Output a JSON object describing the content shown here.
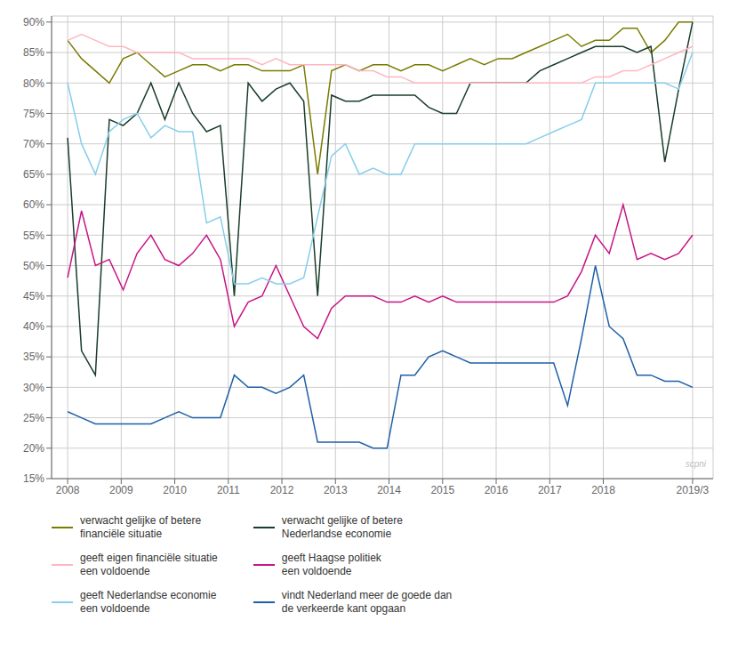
{
  "chart_data": {
    "type": "line",
    "x": [
      2008,
      2008.259267,
      2008.518533,
      2008.7778,
      2009.037067,
      2009.296333,
      2009.5556,
      2009.814867,
      2010.074133,
      2010.3334,
      2010.592667,
      2010.851933,
      2011.1112,
      2011.370467,
      2011.629733,
      2011.889,
      2012.148267,
      2012.407533,
      2012.6668,
      2012.926067,
      2013.185333,
      2013.4446,
      2013.703867,
      2013.963133,
      2014.2224,
      2014.481667,
      2014.740933,
      2015.0002,
      2015.259467,
      2015.518733,
      2015.778,
      2016.037267,
      2016.296533,
      2016.5558,
      2016.815067,
      2017.074333,
      2017.3336,
      2017.592867,
      2017.852133,
      2018.1114,
      2018.370667,
      2018.629933,
      2018.8892,
      2019.148467,
      2019.407733,
      2019.667
    ],
    "series": [
      {
        "name": "verwacht gelijke of betere\nfinanciële situatie",
        "color": "#7b7b00",
        "values": [
          87,
          84,
          82,
          80,
          84,
          85,
          83,
          81,
          82,
          83,
          83,
          82,
          83,
          83,
          82,
          82,
          82,
          83,
          65,
          82,
          83,
          82,
          83,
          83,
          82,
          83,
          83,
          82,
          83,
          84,
          83,
          84,
          84,
          85,
          86,
          87,
          88,
          86,
          87,
          87,
          89,
          89,
          85,
          87,
          90,
          90
        ]
      },
      {
        "name": "verwacht gelijke of betere\nNederlandse economie",
        "color": "#1a3d2b",
        "values": [
          71,
          36,
          32,
          74,
          73,
          75,
          80,
          74,
          80,
          75,
          72,
          73,
          45,
          80,
          77,
          79,
          80,
          77,
          45,
          78,
          77,
          77,
          78,
          78,
          78,
          78,
          76,
          75,
          75,
          80,
          80,
          80,
          80,
          80,
          82,
          83,
          84,
          85,
          86,
          86,
          86,
          85,
          86,
          67,
          79,
          90
        ]
      },
      {
        "name": "geeft eigen financiële situatie\neen voldoende",
        "color": "#ffb6c1",
        "values": [
          87,
          88,
          87,
          86,
          86,
          85,
          85,
          85,
          85,
          84,
          84,
          84,
          84,
          84,
          83,
          84,
          83,
          83,
          83,
          83,
          83,
          82,
          82,
          81,
          81,
          80,
          80,
          80,
          80,
          80,
          80,
          80,
          80,
          80,
          80,
          80,
          80,
          80,
          81,
          81,
          82,
          82,
          83,
          84,
          85,
          86
        ]
      },
      {
        "name": "geeft Haagse politiek\neen voldoende",
        "color": "#c71585",
        "values": [
          48,
          59,
          50,
          51,
          46,
          52,
          55,
          51,
          50,
          52,
          55,
          51,
          40,
          44,
          45,
          50,
          45,
          40,
          38,
          43,
          45,
          45,
          45,
          44,
          44,
          45,
          44,
          45,
          44,
          44,
          44,
          44,
          44,
          44,
          44,
          44,
          45,
          49,
          55,
          52,
          60,
          51,
          52,
          51,
          52,
          55
        ]
      },
      {
        "name": "geeft Nederlandse economie\neen voldoende",
        "color": "#87ceeb",
        "values": [
          80,
          70,
          65,
          72,
          74,
          75,
          71,
          73,
          72,
          72,
          57,
          58,
          47,
          47,
          48,
          47,
          47,
          48,
          58,
          68,
          70,
          65,
          66,
          65,
          65,
          70,
          70,
          70,
          70,
          70,
          70,
          70,
          70,
          70,
          71,
          72,
          73,
          74,
          80,
          80,
          80,
          80,
          80,
          80,
          79,
          85
        ]
      },
      {
        "name": "vindt Nederland meer de goede dan\nde verkeerde kant opgaan",
        "color": "#1e5fa8",
        "values": [
          26,
          25,
          24,
          24,
          24,
          24,
          24,
          25,
          26,
          25,
          25,
          25,
          32,
          30,
          30,
          29,
          30,
          32,
          21,
          21,
          21,
          21,
          20,
          20,
          32,
          32,
          35,
          36,
          35,
          34,
          34,
          34,
          34,
          34,
          34,
          34,
          27,
          38,
          50,
          40,
          38,
          32,
          32,
          31,
          31,
          30
        ]
      }
    ],
    "xlim": [
      2007.7,
      2020.05
    ],
    "xticks": [
      2008,
      2009,
      2010,
      2011,
      2012,
      2013,
      2014,
      2015,
      2016,
      2017,
      2018,
      {
        "value": 2019.667,
        "label": "2019/3"
      }
    ],
    "ylim": [
      15,
      91
    ],
    "yticks": [
      {
        "value": 15,
        "label": "15%"
      },
      {
        "value": 20,
        "label": "20%"
      },
      {
        "value": 25,
        "label": "25%"
      },
      {
        "value": 30,
        "label": "30%"
      },
      {
        "value": 35,
        "label": "35%"
      },
      {
        "value": 40,
        "label": "40%"
      },
      {
        "value": 45,
        "label": "45%"
      },
      {
        "value": 50,
        "label": "50%"
      },
      {
        "value": 55,
        "label": "55%"
      },
      {
        "value": 60,
        "label": "60%"
      },
      {
        "value": 65,
        "label": "65%"
      },
      {
        "value": 70,
        "label": "70%"
      },
      {
        "value": 75,
        "label": "75%"
      },
      {
        "value": 80,
        "label": "80%"
      },
      {
        "value": 85,
        "label": "85%"
      },
      {
        "value": 90,
        "label": "90%"
      }
    ],
    "grid": true,
    "legend": "bottom",
    "annotations": [
      "scpni"
    ]
  }
}
